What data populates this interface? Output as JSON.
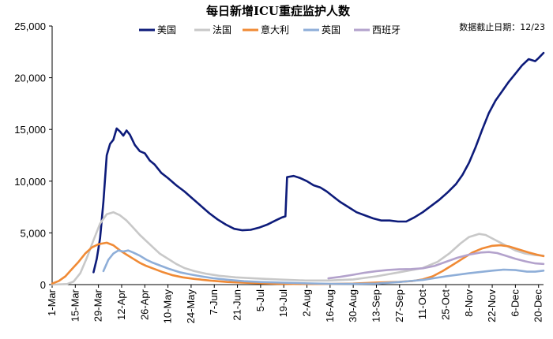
{
  "chart_data": {
    "type": "line",
    "title": "每日新增ICU重症监护人数",
    "note": "数据截止日期：12/23",
    "xlabel": "",
    "ylabel": "",
    "ylim": [
      0,
      25000
    ],
    "yticks": [
      0,
      5000,
      10000,
      15000,
      20000,
      25000
    ],
    "ytick_labels": [
      "0",
      "5,000",
      "10,000",
      "15,000",
      "20,000",
      "25,000"
    ],
    "xlim": [
      "2020-03-01",
      "2020-12-23"
    ],
    "xticks": [
      "2020-03-01",
      "2020-03-15",
      "2020-03-29",
      "2020-04-12",
      "2020-04-26",
      "2020-05-10",
      "2020-05-24",
      "2020-06-07",
      "2020-06-21",
      "2020-07-05",
      "2020-07-19",
      "2020-08-02",
      "2020-08-16",
      "2020-08-30",
      "2020-09-13",
      "2020-09-27",
      "2020-10-11",
      "2020-10-25",
      "2020-11-08",
      "2020-11-22",
      "2020-12-06",
      "2020-12-20"
    ],
    "xtick_labels": [
      "1-Mar",
      "15-Mar",
      "29-Mar",
      "12-Apr",
      "26-Apr",
      "10-May",
      "24-May",
      "7-Jun",
      "21-Jun",
      "5-Jul",
      "19-Jul",
      "2-Aug",
      "16-Aug",
      "30-Aug",
      "13-Sep",
      "27-Sep",
      "11-Oct",
      "25-Oct",
      "8-Nov",
      "22-Nov",
      "6-Dec",
      "20-Dec"
    ],
    "legend_position": "top",
    "grid": false,
    "series": [
      {
        "name": "美国",
        "color": "#0d1b7a",
        "points": [
          [
            "2020-03-26",
            1200
          ],
          [
            "2020-03-28",
            2500
          ],
          [
            "2020-03-30",
            4500
          ],
          [
            "2020-04-01",
            8000
          ],
          [
            "2020-04-03",
            12500
          ],
          [
            "2020-04-05",
            13600
          ],
          [
            "2020-04-07",
            14000
          ],
          [
            "2020-04-09",
            15100
          ],
          [
            "2020-04-11",
            14800
          ],
          [
            "2020-04-13",
            14400
          ],
          [
            "2020-04-15",
            14900
          ],
          [
            "2020-04-17",
            14500
          ],
          [
            "2020-04-20",
            13500
          ],
          [
            "2020-04-23",
            12900
          ],
          [
            "2020-04-26",
            12700
          ],
          [
            "2020-04-29",
            12000
          ],
          [
            "2020-05-02",
            11600
          ],
          [
            "2020-05-06",
            10800
          ],
          [
            "2020-05-10",
            10300
          ],
          [
            "2020-05-15",
            9600
          ],
          [
            "2020-05-20",
            9000
          ],
          [
            "2020-05-25",
            8300
          ],
          [
            "2020-05-30",
            7600
          ],
          [
            "2020-06-04",
            6900
          ],
          [
            "2020-06-09",
            6300
          ],
          [
            "2020-06-14",
            5800
          ],
          [
            "2020-06-19",
            5400
          ],
          [
            "2020-06-24",
            5250
          ],
          [
            "2020-06-29",
            5300
          ],
          [
            "2020-07-04",
            5500
          ],
          [
            "2020-07-09",
            5800
          ],
          [
            "2020-07-14",
            6200
          ],
          [
            "2020-07-18",
            6500
          ],
          [
            "2020-07-20",
            6600
          ],
          [
            "2020-07-21",
            10400
          ],
          [
            "2020-07-25",
            10500
          ],
          [
            "2020-07-29",
            10300
          ],
          [
            "2020-08-02",
            10000
          ],
          [
            "2020-08-06",
            9600
          ],
          [
            "2020-08-10",
            9400
          ],
          [
            "2020-08-14",
            9000
          ],
          [
            "2020-08-18",
            8500
          ],
          [
            "2020-08-22",
            8000
          ],
          [
            "2020-08-27",
            7500
          ],
          [
            "2020-09-01",
            7000
          ],
          [
            "2020-09-06",
            6700
          ],
          [
            "2020-09-11",
            6400
          ],
          [
            "2020-09-16",
            6200
          ],
          [
            "2020-09-21",
            6200
          ],
          [
            "2020-09-26",
            6100
          ],
          [
            "2020-10-01",
            6100
          ],
          [
            "2020-10-06",
            6500
          ],
          [
            "2020-10-11",
            7000
          ],
          [
            "2020-10-16",
            7600
          ],
          [
            "2020-10-21",
            8200
          ],
          [
            "2020-10-26",
            8900
          ],
          [
            "2020-10-31",
            9700
          ],
          [
            "2020-11-04",
            10600
          ],
          [
            "2020-11-08",
            11800
          ],
          [
            "2020-11-12",
            13300
          ],
          [
            "2020-11-16",
            15000
          ],
          [
            "2020-11-20",
            16600
          ],
          [
            "2020-11-24",
            17800
          ],
          [
            "2020-11-28",
            18700
          ],
          [
            "2020-12-02",
            19600
          ],
          [
            "2020-12-06",
            20400
          ],
          [
            "2020-12-10",
            21200
          ],
          [
            "2020-12-14",
            21800
          ],
          [
            "2020-12-18",
            21600
          ],
          [
            "2020-12-20",
            21900
          ],
          [
            "2020-12-23",
            22400
          ]
        ]
      },
      {
        "name": "法国",
        "color": "#c8c8c8",
        "points": [
          [
            "2020-03-01",
            0
          ],
          [
            "2020-03-10",
            50
          ],
          [
            "2020-03-14",
            300
          ],
          [
            "2020-03-18",
            1100
          ],
          [
            "2020-03-22",
            2600
          ],
          [
            "2020-03-26",
            4300
          ],
          [
            "2020-03-30",
            5900
          ],
          [
            "2020-04-03",
            6800
          ],
          [
            "2020-04-07",
            7000
          ],
          [
            "2020-04-11",
            6700
          ],
          [
            "2020-04-15",
            6200
          ],
          [
            "2020-04-19",
            5500
          ],
          [
            "2020-04-23",
            4800
          ],
          [
            "2020-04-27",
            4200
          ],
          [
            "2020-05-01",
            3600
          ],
          [
            "2020-05-05",
            3000
          ],
          [
            "2020-05-10",
            2500
          ],
          [
            "2020-05-15",
            2000
          ],
          [
            "2020-05-20",
            1600
          ],
          [
            "2020-05-26",
            1300
          ],
          [
            "2020-06-02",
            1050
          ],
          [
            "2020-06-10",
            850
          ],
          [
            "2020-06-20",
            700
          ],
          [
            "2020-07-01",
            600
          ],
          [
            "2020-07-15",
            500
          ],
          [
            "2020-08-01",
            400
          ],
          [
            "2020-08-15",
            400
          ],
          [
            "2020-08-30",
            500
          ],
          [
            "2020-09-13",
            800
          ],
          [
            "2020-09-27",
            1200
          ],
          [
            "2020-10-11",
            1600
          ],
          [
            "2020-10-20",
            2200
          ],
          [
            "2020-10-27",
            3000
          ],
          [
            "2020-11-03",
            4000
          ],
          [
            "2020-11-08",
            4600
          ],
          [
            "2020-11-14",
            4900
          ],
          [
            "2020-11-18",
            4800
          ],
          [
            "2020-11-24",
            4300
          ],
          [
            "2020-11-30",
            3800
          ],
          [
            "2020-12-06",
            3300
          ],
          [
            "2020-12-12",
            3000
          ],
          [
            "2020-12-18",
            2850
          ],
          [
            "2020-12-23",
            2800
          ]
        ]
      },
      {
        "name": "意大利",
        "color": "#f08a35",
        "points": [
          [
            "2020-03-01",
            100
          ],
          [
            "2020-03-05",
            350
          ],
          [
            "2020-03-09",
            800
          ],
          [
            "2020-03-13",
            1500
          ],
          [
            "2020-03-17",
            2200
          ],
          [
            "2020-03-21",
            3000
          ],
          [
            "2020-03-25",
            3600
          ],
          [
            "2020-03-29",
            3900
          ],
          [
            "2020-04-03",
            4050
          ],
          [
            "2020-04-07",
            3800
          ],
          [
            "2020-04-11",
            3300
          ],
          [
            "2020-04-15",
            2900
          ],
          [
            "2020-04-19",
            2500
          ],
          [
            "2020-04-23",
            2100
          ],
          [
            "2020-04-27",
            1800
          ],
          [
            "2020-05-02",
            1500
          ],
          [
            "2020-05-07",
            1200
          ],
          [
            "2020-05-13",
            900
          ],
          [
            "2020-05-19",
            700
          ],
          [
            "2020-05-26",
            550
          ],
          [
            "2020-06-04",
            400
          ],
          [
            "2020-06-15",
            250
          ],
          [
            "2020-06-30",
            150
          ],
          [
            "2020-07-15",
            80
          ],
          [
            "2020-08-01",
            50
          ],
          [
            "2020-08-16",
            60
          ],
          [
            "2020-08-30",
            100
          ],
          [
            "2020-09-13",
            200
          ],
          [
            "2020-09-27",
            270
          ],
          [
            "2020-10-05",
            350
          ],
          [
            "2020-10-11",
            500
          ],
          [
            "2020-10-17",
            800
          ],
          [
            "2020-10-23",
            1300
          ],
          [
            "2020-10-29",
            1900
          ],
          [
            "2020-11-04",
            2500
          ],
          [
            "2020-11-10",
            3100
          ],
          [
            "2020-11-16",
            3500
          ],
          [
            "2020-11-22",
            3750
          ],
          [
            "2020-11-27",
            3800
          ],
          [
            "2020-12-02",
            3700
          ],
          [
            "2020-12-08",
            3400
          ],
          [
            "2020-12-14",
            3100
          ],
          [
            "2020-12-19",
            2900
          ],
          [
            "2020-12-23",
            2750
          ]
        ]
      },
      {
        "name": "英国",
        "color": "#8eaed8",
        "points": [
          [
            "2020-04-01",
            1300
          ],
          [
            "2020-04-04",
            2400
          ],
          [
            "2020-04-07",
            3000
          ],
          [
            "2020-04-10",
            3300
          ],
          [
            "2020-04-13",
            3200
          ],
          [
            "2020-04-16",
            3300
          ],
          [
            "2020-04-19",
            3100
          ],
          [
            "2020-04-23",
            2800
          ],
          [
            "2020-04-27",
            2400
          ],
          [
            "2020-05-01",
            2100
          ],
          [
            "2020-05-06",
            1800
          ],
          [
            "2020-05-11",
            1500
          ],
          [
            "2020-05-17",
            1200
          ],
          [
            "2020-05-23",
            1000
          ],
          [
            "2020-05-30",
            800
          ],
          [
            "2020-06-07",
            600
          ],
          [
            "2020-06-16",
            450
          ],
          [
            "2020-06-25",
            330
          ],
          [
            "2020-07-05",
            250
          ],
          [
            "2020-07-19",
            180
          ],
          [
            "2020-08-02",
            120
          ],
          [
            "2020-08-16",
            80
          ],
          [
            "2020-08-30",
            70
          ],
          [
            "2020-09-13",
            100
          ],
          [
            "2020-09-27",
            250
          ],
          [
            "2020-10-11",
            450
          ],
          [
            "2020-10-25",
            800
          ],
          [
            "2020-11-08",
            1100
          ],
          [
            "2020-11-22",
            1350
          ],
          [
            "2020-11-29",
            1450
          ],
          [
            "2020-12-06",
            1400
          ],
          [
            "2020-12-13",
            1250
          ],
          [
            "2020-12-18",
            1250
          ],
          [
            "2020-12-23",
            1350
          ]
        ]
      },
      {
        "name": "西班牙",
        "color": "#b3a2cc",
        "points": [
          [
            "2020-08-15",
            600
          ],
          [
            "2020-08-22",
            750
          ],
          [
            "2020-08-30",
            950
          ],
          [
            "2020-09-06",
            1150
          ],
          [
            "2020-09-13",
            1300
          ],
          [
            "2020-09-20",
            1420
          ],
          [
            "2020-09-27",
            1480
          ],
          [
            "2020-10-04",
            1500
          ],
          [
            "2020-10-11",
            1580
          ],
          [
            "2020-10-18",
            1800
          ],
          [
            "2020-10-25",
            2200
          ],
          [
            "2020-11-01",
            2600
          ],
          [
            "2020-11-08",
            2900
          ],
          [
            "2020-11-15",
            3100
          ],
          [
            "2020-11-20",
            3150
          ],
          [
            "2020-11-25",
            3050
          ],
          [
            "2020-11-30",
            2800
          ],
          [
            "2020-12-06",
            2500
          ],
          [
            "2020-12-12",
            2250
          ],
          [
            "2020-12-18",
            2050
          ],
          [
            "2020-12-23",
            2000
          ]
        ]
      }
    ]
  }
}
